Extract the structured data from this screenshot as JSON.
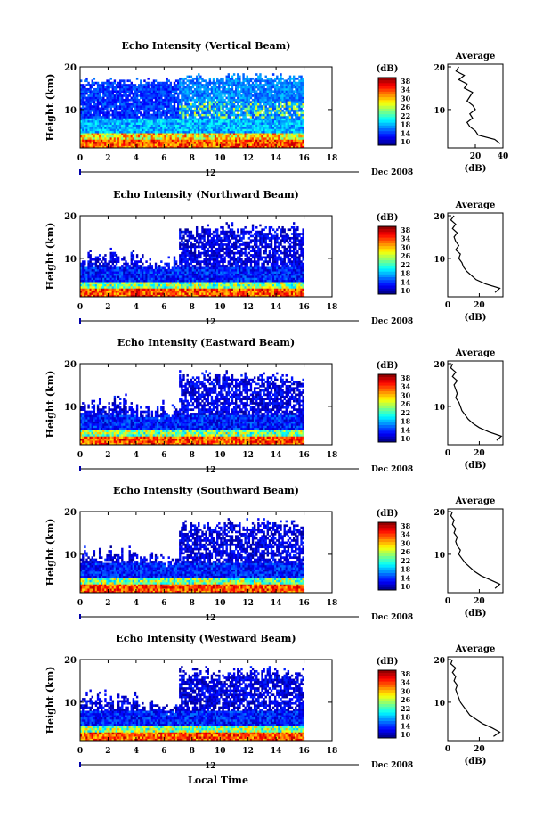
{
  "figure": {
    "xlabel": "Local Time",
    "colors": {
      "axis": "#000000",
      "bg": "#ffffff",
      "marker": "#0000aa"
    }
  },
  "chart_data": [
    {
      "type": "heatmap",
      "title": "Echo Intensity (Vertical Beam)",
      "ylabel": "Height (km)",
      "yticks": [
        "10",
        "20"
      ],
      "ylim": [
        1,
        20
      ],
      "xticks": [
        "0",
        "2",
        "4",
        "6",
        "8",
        "10",
        "12",
        "14",
        "16",
        "18"
      ],
      "xlim": [
        0,
        18
      ],
      "date_label": "12",
      "date_suffix": "Dec 2008",
      "colorbar": {
        "unit": "(dB)",
        "ticks": [
          "38",
          "34",
          "30",
          "26",
          "22",
          "18",
          "14",
          "10"
        ]
      },
      "profile": {
        "title": "Average",
        "xlabel": "(dB)",
        "xticks": [
          "20",
          "40"
        ],
        "xlim": [
          0,
          40
        ],
        "heights": [
          20,
          19,
          18,
          17,
          16,
          15,
          14,
          13,
          12,
          11,
          10,
          9,
          8,
          7,
          6,
          5,
          4,
          3,
          2
        ],
        "values": [
          8,
          6,
          12,
          8,
          14,
          12,
          18,
          16,
          14,
          18,
          20,
          16,
          18,
          14,
          16,
          20,
          22,
          34,
          38
        ]
      }
    },
    {
      "type": "heatmap",
      "title": "Echo Intensity (Northward Beam)",
      "ylabel": "Height (km)",
      "yticks": [
        "10",
        "20"
      ],
      "ylim": [
        1,
        20
      ],
      "xticks": [
        "0",
        "2",
        "4",
        "6",
        "8",
        "10",
        "12",
        "14",
        "16",
        "18"
      ],
      "xlim": [
        0,
        18
      ],
      "date_label": "12",
      "date_suffix": "Dec 2008",
      "colorbar": {
        "unit": "(dB)",
        "ticks": [
          "38",
          "34",
          "30",
          "26",
          "22",
          "18",
          "14",
          "10"
        ]
      },
      "profile": {
        "title": "Average",
        "xlabel": "(dB)",
        "xticks": [
          "0",
          "20"
        ],
        "xlim": [
          0,
          35
        ],
        "heights": [
          20,
          19,
          18,
          17,
          16,
          15,
          14,
          13,
          12,
          11,
          10,
          9,
          8,
          7,
          6,
          5,
          4,
          3,
          2
        ],
        "values": [
          4,
          2,
          5,
          3,
          6,
          4,
          5,
          7,
          5,
          8,
          7,
          9,
          10,
          12,
          15,
          18,
          24,
          33,
          30
        ]
      }
    },
    {
      "type": "heatmap",
      "title": "Echo Intensity (Eastward Beam)",
      "ylabel": "Height (km)",
      "yticks": [
        "10",
        "20"
      ],
      "ylim": [
        1,
        20
      ],
      "xticks": [
        "0",
        "2",
        "4",
        "6",
        "8",
        "10",
        "12",
        "14",
        "16",
        "18"
      ],
      "xlim": [
        0,
        18
      ],
      "date_label": "12",
      "date_suffix": "Dec 2008",
      "colorbar": {
        "unit": "(dB)",
        "ticks": [
          "38",
          "34",
          "30",
          "26",
          "22",
          "18",
          "14",
          "10"
        ]
      },
      "profile": {
        "title": "Average",
        "xlabel": "(dB)",
        "xticks": [
          "0",
          "20"
        ],
        "xlim": [
          0,
          35
        ],
        "heights": [
          20,
          19,
          18,
          17,
          16,
          15,
          14,
          13,
          12,
          11,
          10,
          9,
          8,
          7,
          6,
          5,
          4,
          3,
          2
        ],
        "values": [
          3,
          2,
          5,
          3,
          6,
          4,
          5,
          6,
          5,
          7,
          8,
          9,
          11,
          13,
          16,
          20,
          26,
          34,
          31
        ]
      }
    },
    {
      "type": "heatmap",
      "title": "Echo Intensity (Southward Beam)",
      "ylabel": "Height (km)",
      "yticks": [
        "10",
        "20"
      ],
      "ylim": [
        1,
        20
      ],
      "xticks": [
        "0",
        "2",
        "4",
        "6",
        "8",
        "10",
        "12",
        "14",
        "16",
        "18"
      ],
      "xlim": [
        0,
        18
      ],
      "date_label": "12",
      "date_suffix": "Dec 2008",
      "colorbar": {
        "unit": "(dB)",
        "ticks": [
          "38",
          "34",
          "30",
          "26",
          "22",
          "18",
          "14",
          "10"
        ]
      },
      "profile": {
        "title": "Average",
        "xlabel": "(dB)",
        "xticks": [
          "0",
          "20"
        ],
        "xlim": [
          0,
          35
        ],
        "heights": [
          20,
          19,
          18,
          17,
          16,
          15,
          14,
          13,
          12,
          11,
          10,
          9,
          8,
          7,
          6,
          5,
          4,
          3,
          2
        ],
        "values": [
          3,
          2,
          4,
          3,
          5,
          4,
          6,
          5,
          6,
          8,
          7,
          9,
          11,
          14,
          17,
          21,
          27,
          33,
          30
        ]
      }
    },
    {
      "type": "heatmap",
      "title": "Echo Intensity (Westward Beam)",
      "ylabel": "Height (km)",
      "yticks": [
        "10",
        "20"
      ],
      "ylim": [
        1,
        20
      ],
      "xticks": [
        "0",
        "2",
        "4",
        "6",
        "8",
        "10",
        "12",
        "14",
        "16",
        "18"
      ],
      "xlim": [
        0,
        18
      ],
      "date_label": "12",
      "date_suffix": "Dec 2008",
      "colorbar": {
        "unit": "(dB)",
        "ticks": [
          "38",
          "34",
          "30",
          "26",
          "22",
          "18",
          "14",
          "10"
        ]
      },
      "profile": {
        "title": "Average",
        "xlabel": "(dB)",
        "xticks": [
          "0",
          "20"
        ],
        "xlim": [
          0,
          35
        ],
        "heights": [
          20,
          19,
          18,
          17,
          16,
          15,
          14,
          13,
          12,
          11,
          10,
          9,
          8,
          7,
          6,
          5,
          4,
          3,
          2
        ],
        "values": [
          3,
          2,
          5,
          3,
          5,
          4,
          6,
          5,
          6,
          7,
          8,
          10,
          12,
          14,
          18,
          22,
          28,
          33,
          29
        ]
      }
    }
  ]
}
